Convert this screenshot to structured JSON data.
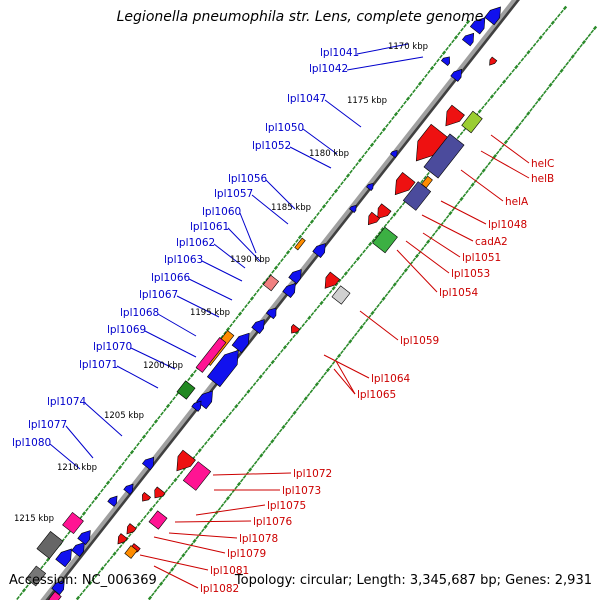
{
  "title": "Legionella pneumophila str. Lens, complete genome",
  "footer": {
    "accession": "Accession: NC_006369",
    "summary": "Topology: circular; Length: 3,345,687 bp; Genes: 2,931"
  },
  "colors": {
    "backbone": "#808080",
    "tick": "#2a8a2a",
    "leftLabel": "#0000cc",
    "rightLabel": "#cc0000",
    "blueGene": "#1111ee",
    "redGene": "#ee1111"
  },
  "scale_labels": [
    "1170 kbp",
    "1175 kbp",
    "1180 kbp",
    "1185 kbp",
    "1190 kbp",
    "1195 kbp",
    "1200 kbp",
    "1205 kbp",
    "1210 kbp",
    "1215 kbp"
  ],
  "left_labels": [
    "lpl1041",
    "lpl1042",
    "lpl1047",
    "lpl1050",
    "lpl1052",
    "lpl1056",
    "lpl1057",
    "lpl1060",
    "lpl1061",
    "lpl1062",
    "lpl1063",
    "lpl1066",
    "lpl1067",
    "lpl1068",
    "lpl1069",
    "lpl1070",
    "lpl1071",
    "lpl1074",
    "lpl1077",
    "lpl1080"
  ],
  "right_labels": [
    "helC",
    "helB",
    "helA",
    "lpl1048",
    "cadA2",
    "lpl1051",
    "lpl1053",
    "lpl1054",
    "lpl1059",
    "lpl1064",
    "lpl1065",
    "lpl1072",
    "lpl1073",
    "lpl1075",
    "lpl1076",
    "lpl1078",
    "lpl1079",
    "lpl1081",
    "lpl1082"
  ]
}
